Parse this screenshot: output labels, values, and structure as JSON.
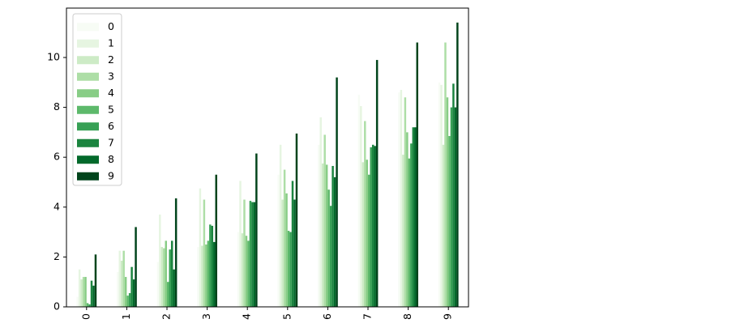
{
  "chart_data": {
    "type": "bar",
    "categories": [
      "0",
      "1",
      "2",
      "3",
      "4",
      "5",
      "6",
      "7",
      "8",
      "9"
    ],
    "series": [
      {
        "name": "0",
        "color": "#f7fcf5",
        "values": [
          0.4,
          1.4,
          1.8,
          2.4,
          3.0,
          5.3,
          6.5,
          8.5,
          8.6,
          9.0
        ]
      },
      {
        "name": "1",
        "color": "#e6f5e1",
        "values": [
          1.5,
          2.25,
          3.7,
          4.75,
          5.05,
          6.5,
          7.6,
          8.05,
          8.7,
          8.9
        ]
      },
      {
        "name": "2",
        "color": "#cdebc6",
        "values": [
          1.1,
          1.85,
          2.4,
          2.45,
          2.95,
          4.3,
          5.75,
          5.8,
          6.1,
          6.5
        ]
      },
      {
        "name": "3",
        "color": "#addea6",
        "values": [
          1.2,
          2.25,
          2.35,
          4.3,
          4.3,
          5.5,
          6.9,
          7.45,
          8.4,
          10.6
        ]
      },
      {
        "name": "4",
        "color": "#88cd86",
        "values": [
          1.2,
          1.2,
          2.65,
          2.5,
          2.85,
          4.55,
          5.7,
          5.9,
          7.0,
          8.4
        ]
      },
      {
        "name": "5",
        "color": "#5db96b",
        "values": [
          0.15,
          0.45,
          1.0,
          2.65,
          2.65,
          3.05,
          4.7,
          5.3,
          5.95,
          6.85
        ]
      },
      {
        "name": "6",
        "color": "#37a055",
        "values": [
          0.1,
          0.55,
          2.3,
          3.3,
          4.25,
          3.0,
          4.05,
          6.4,
          6.55,
          8.0
        ]
      },
      {
        "name": "7",
        "color": "#1b843f",
        "values": [
          1.05,
          1.6,
          2.65,
          3.25,
          4.2,
          5.05,
          5.65,
          6.5,
          7.2,
          8.95
        ]
      },
      {
        "name": "8",
        "color": "#03692b",
        "values": [
          0.85,
          1.1,
          1.5,
          2.6,
          4.2,
          4.3,
          5.2,
          6.45,
          7.2,
          8.0
        ]
      },
      {
        "name": "9",
        "color": "#00441b",
        "values": [
          2.1,
          3.2,
          4.35,
          5.3,
          6.15,
          6.95,
          9.2,
          9.9,
          10.6,
          11.4
        ]
      }
    ],
    "ylim": [
      0,
      11.98
    ],
    "yticks": [
      0,
      2,
      4,
      6,
      8,
      10
    ],
    "legend": "upper left"
  }
}
